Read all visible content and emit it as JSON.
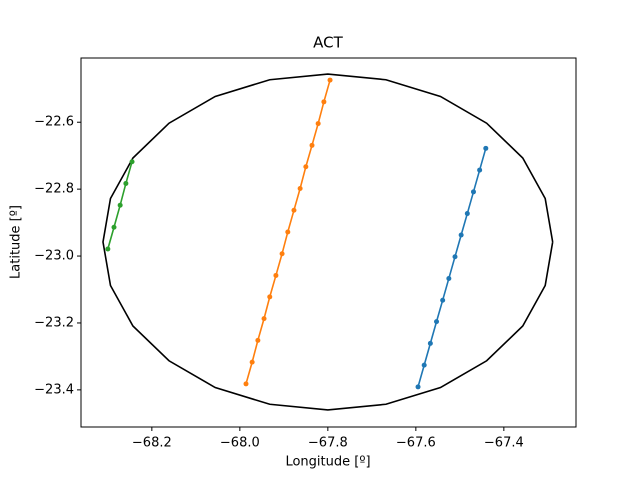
{
  "chart_data": {
    "type": "line",
    "title": "ACT",
    "x_label": "Longitude [º]",
    "y_label": "Latitude [º]",
    "xlim": [
      -68.361,
      -67.236
    ],
    "ylim": [
      -23.511,
      -22.408
    ],
    "xticks": [
      {
        "value": -68.2,
        "label": "−68.2"
      },
      {
        "value": -68.0,
        "label": "−68.0"
      },
      {
        "value": -67.8,
        "label": "−67.8"
      },
      {
        "value": -67.6,
        "label": "−67.6"
      },
      {
        "value": -67.4,
        "label": "−67.4"
      }
    ],
    "yticks": [
      {
        "value": -22.6,
        "label": "−22.6"
      },
      {
        "value": -22.8,
        "label": "−22.8"
      },
      {
        "value": -23.0,
        "label": "−23.0"
      },
      {
        "value": -23.2,
        "label": "−23.2"
      },
      {
        "value": -23.4,
        "label": "−23.4"
      }
    ],
    "series": [
      {
        "color": "#000000",
        "markers": false,
        "x": [
          -67.289,
          -67.306,
          -67.357,
          -67.439,
          -67.544,
          -67.668,
          -67.8,
          -67.932,
          -68.056,
          -68.161,
          -68.243,
          -68.294,
          -68.311,
          -68.294,
          -68.243,
          -68.161,
          -68.056,
          -67.932,
          -67.8,
          -67.668,
          -67.544,
          -67.439,
          -67.357,
          -67.306,
          -67.289
        ],
        "values": [
          -22.958,
          -22.828,
          -22.707,
          -22.603,
          -22.523,
          -22.473,
          -22.456,
          -22.473,
          -22.523,
          -22.603,
          -22.707,
          -22.828,
          -22.958,
          -23.088,
          -23.209,
          -23.313,
          -23.393,
          -23.443,
          -23.46,
          -23.443,
          -23.393,
          -23.313,
          -23.209,
          -23.088,
          -22.958
        ]
      },
      {
        "color": "#1f77b4",
        "markers": true,
        "x": [
          -67.595,
          -67.581,
          -67.567,
          -67.553,
          -67.539,
          -67.525,
          -67.511,
          -67.497,
          -67.483,
          -67.469,
          -67.455,
          -67.441
        ],
        "values": [
          -23.391,
          -23.326,
          -23.261,
          -23.196,
          -23.132,
          -23.067,
          -23.002,
          -22.937,
          -22.873,
          -22.808,
          -22.743,
          -22.678
        ]
      },
      {
        "color": "#ff7f0e",
        "markers": true,
        "x": [
          -67.986,
          -67.972,
          -67.959,
          -67.945,
          -67.932,
          -67.918,
          -67.904,
          -67.891,
          -67.877,
          -67.863,
          -67.85,
          -67.836,
          -67.822,
          -67.809,
          -67.795
        ],
        "values": [
          -23.382,
          -23.317,
          -23.252,
          -23.187,
          -23.122,
          -23.058,
          -22.993,
          -22.928,
          -22.863,
          -22.798,
          -22.733,
          -22.669,
          -22.604,
          -22.539,
          -22.474
        ]
      },
      {
        "color": "#2ca02c",
        "markers": true,
        "x": [
          -68.3,
          -68.286,
          -68.272,
          -68.259,
          -68.245
        ],
        "values": [
          -22.979,
          -22.914,
          -22.848,
          -22.783,
          -22.718
        ]
      }
    ]
  }
}
